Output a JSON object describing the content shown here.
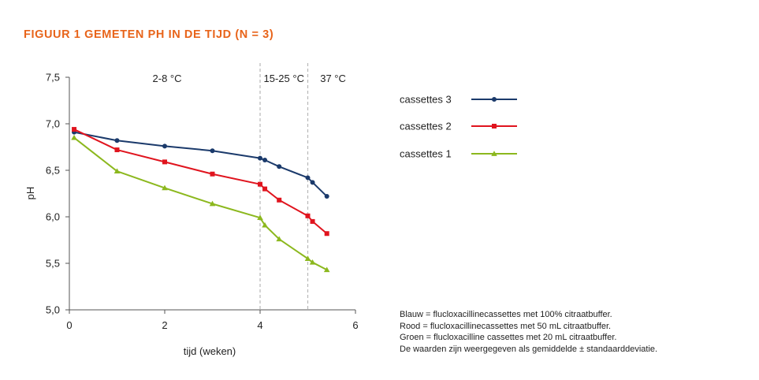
{
  "title": "FIGUUR 1  GEMETEN PH IN DE TIJD (N = 3)",
  "colors": {
    "title": "#e8641a",
    "cassettes3": "#1b3a6b",
    "cassettes2": "#e0141e",
    "cassettes1": "#8cb81e",
    "axis": "#555555",
    "divider": "#b8b8b8"
  },
  "chart_data": {
    "type": "line",
    "xlabel": "tijd (weken)",
    "ylabel": "pH",
    "xlim": [
      0,
      6
    ],
    "ylim": [
      5.0,
      7.5
    ],
    "x_ticks": [
      "0",
      "2",
      "4",
      "6"
    ],
    "x_tick_values": [
      0,
      2,
      4,
      6
    ],
    "y_ticks": [
      "5,0",
      "5,5",
      "6,0",
      "6,5",
      "7,0",
      "7,5"
    ],
    "y_tick_values": [
      5.0,
      5.5,
      6.0,
      6.5,
      7.0,
      7.5
    ],
    "grid": false,
    "legend_position": "right",
    "temperature_dividers": [
      4,
      5
    ],
    "temperature_zones": [
      {
        "label": "2-8 °C",
        "x": 2.05
      },
      {
        "label": "15-25 °C",
        "x": 4.5
      },
      {
        "label": "37 °C",
        "x": 5.53
      }
    ],
    "series": [
      {
        "name": "cassettes 3",
        "color_key": "cassettes3",
        "marker": "circle",
        "points": [
          [
            0.1,
            6.91
          ],
          [
            1,
            6.82
          ],
          [
            2,
            6.76
          ],
          [
            3,
            6.71
          ],
          [
            4,
            6.63
          ],
          [
            4.1,
            6.61
          ],
          [
            4.4,
            6.54
          ],
          [
            5,
            6.42
          ],
          [
            5.1,
            6.37
          ],
          [
            5.4,
            6.22
          ]
        ]
      },
      {
        "name": "cassettes 2",
        "color_key": "cassettes2",
        "marker": "square",
        "points": [
          [
            0.1,
            6.94
          ],
          [
            1,
            6.72
          ],
          [
            2,
            6.59
          ],
          [
            3,
            6.46
          ],
          [
            4,
            6.35
          ],
          [
            4.1,
            6.3
          ],
          [
            4.4,
            6.18
          ],
          [
            5,
            6.01
          ],
          [
            5.1,
            5.95
          ],
          [
            5.4,
            5.82
          ]
        ]
      },
      {
        "name": "cassettes 1",
        "color_key": "cassettes1",
        "marker": "triangle",
        "points": [
          [
            0.1,
            6.85
          ],
          [
            1,
            6.49
          ],
          [
            2,
            6.31
          ],
          [
            3,
            6.14
          ],
          [
            4,
            5.99
          ],
          [
            4.1,
            5.91
          ],
          [
            4.4,
            5.76
          ],
          [
            5,
            5.55
          ],
          [
            5.1,
            5.51
          ],
          [
            5.4,
            5.43
          ]
        ]
      }
    ]
  },
  "notes": [
    "Blauw = flucloxacillinecassettes met 100% citraatbuffer.",
    "Rood = flucloxacillinecassettes met 50 mL citraatbuffer.",
    "Groen = flucloxacilline cassettes met 20 mL citraatbuffer.",
    "De waarden zijn weergegeven als gemiddelde ± standaarddeviatie."
  ]
}
